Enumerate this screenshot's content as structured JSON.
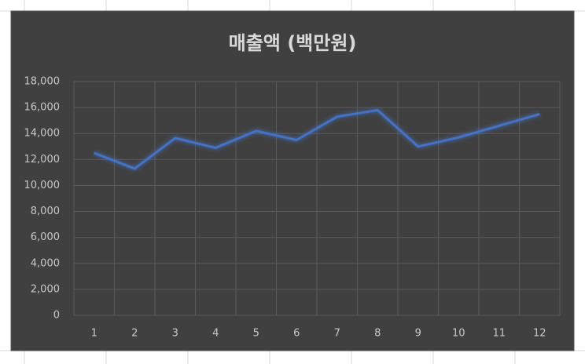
{
  "chart_data": {
    "type": "line",
    "title": "매출액 (백만원)",
    "categories": [
      1,
      2,
      3,
      4,
      5,
      6,
      7,
      8,
      9,
      10,
      11,
      12
    ],
    "series": [
      {
        "name": "매출액",
        "color": "#4472c4",
        "values": [
          12500,
          11300,
          13650,
          12900,
          14200,
          13500,
          15300,
          15800,
          13000,
          13700,
          14600,
          15500
        ]
      }
    ],
    "ylim": [
      0,
      18000
    ],
    "yticks": [
      0,
      {
        "value": 2000,
        "label": "2,000"
      },
      {
        "value": 4000,
        "label": "4,000"
      },
      {
        "value": 6000,
        "label": "6,000"
      },
      {
        "value": 8000,
        "label": "8,000"
      },
      {
        "value": 10000,
        "label": "10,000"
      },
      {
        "value": 12000,
        "label": "12,000"
      },
      {
        "value": 14000,
        "label": "14,000"
      },
      {
        "value": 16000,
        "label": "16,000"
      },
      {
        "value": 18000,
        "label": "18,000"
      }
    ],
    "grid": true
  }
}
